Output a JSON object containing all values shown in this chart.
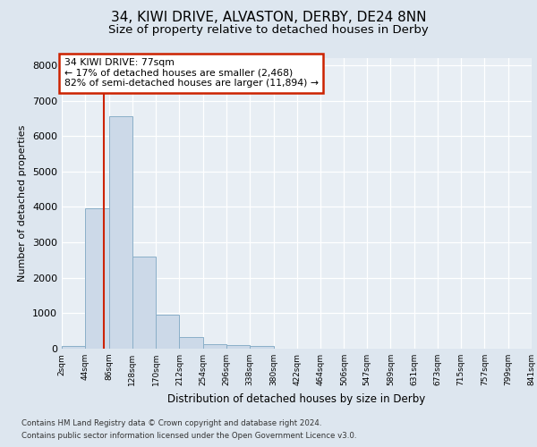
{
  "title1": "34, KIWI DRIVE, ALVASTON, DERBY, DE24 8NN",
  "title2": "Size of property relative to detached houses in Derby",
  "xlabel": "Distribution of detached houses by size in Derby",
  "ylabel": "Number of detached properties",
  "bin_edges": [
    2,
    44,
    86,
    128,
    170,
    212,
    254,
    296,
    338,
    380,
    422,
    464,
    506,
    547,
    589,
    631,
    673,
    715,
    757,
    799,
    841
  ],
  "bar_heights": [
    80,
    3950,
    6550,
    2600,
    950,
    340,
    130,
    110,
    75,
    0,
    0,
    0,
    0,
    0,
    0,
    0,
    0,
    0,
    0,
    0
  ],
  "bar_color": "#ccd9e8",
  "bar_edge_color": "#8aafc8",
  "property_size": 77,
  "red_line_color": "#cc2200",
  "annotation_line1": "34 KIWI DRIVE: 77sqm",
  "annotation_line2": "← 17% of detached houses are smaller (2,468)",
  "annotation_line3": "82% of semi-detached houses are larger (11,894) →",
  "annotation_box_color": "#ffffff",
  "annotation_box_edge": "#cc2200",
  "ylim": [
    0,
    8200
  ],
  "yticks": [
    0,
    1000,
    2000,
    3000,
    4000,
    5000,
    6000,
    7000,
    8000
  ],
  "footer1": "Contains HM Land Registry data © Crown copyright and database right 2024.",
  "footer2": "Contains public sector information licensed under the Open Government Licence v3.0.",
  "bg_color": "#dde6ef",
  "plot_bg_color": "#e8eef4",
  "title1_fontsize": 11,
  "title2_fontsize": 9.5,
  "tick_labels": [
    "2sqm",
    "44sqm",
    "86sqm",
    "128sqm",
    "170sqm",
    "212sqm",
    "254sqm",
    "296sqm",
    "338sqm",
    "380sqm",
    "422sqm",
    "464sqm",
    "506sqm",
    "547sqm",
    "589sqm",
    "631sqm",
    "673sqm",
    "715sqm",
    "757sqm",
    "799sqm",
    "841sqm"
  ]
}
